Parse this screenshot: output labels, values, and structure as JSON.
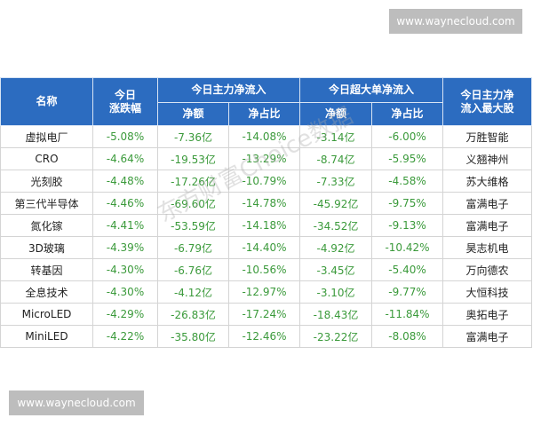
{
  "watermarks": {
    "top": "www.waynecloud.com",
    "bottom": "www.waynecloud.com",
    "diagonal": "东方财富Choice数据"
  },
  "table": {
    "header": {
      "name": "名称",
      "change": [
        "今日",
        "涨跌幅"
      ],
      "main": "今日主力净流入",
      "super": "今日超大单净流入",
      "top_stock": [
        "今日主力净",
        "流入最大股"
      ],
      "sub": [
        "净额",
        "净占比",
        "净额",
        "净占比"
      ]
    },
    "rows": [
      [
        "虚拟电厂",
        "-5.08%",
        "-7.36亿",
        "-14.08%",
        "-3.14亿",
        "-6.00%",
        "万胜智能"
      ],
      [
        "CRO",
        "-4.64%",
        "-19.53亿",
        "-13.29%",
        "-8.74亿",
        "-5.95%",
        "义翘神州"
      ],
      [
        "光刻胶",
        "-4.48%",
        "-17.26亿",
        "-10.79%",
        "-7.33亿",
        "-4.58%",
        "苏大维格"
      ],
      [
        "第三代半导体",
        "-4.46%",
        "-69.60亿",
        "-14.78%",
        "-45.92亿",
        "-9.75%",
        "富满电子"
      ],
      [
        "氮化镓",
        "-4.41%",
        "-53.59亿",
        "-14.18%",
        "-34.52亿",
        "-9.13%",
        "富满电子"
      ],
      [
        "3D玻璃",
        "-4.39%",
        "-6.79亿",
        "-14.40%",
        "-4.92亿",
        "-10.42%",
        "昊志机电"
      ],
      [
        "转基因",
        "-4.30%",
        "-6.76亿",
        "-10.56%",
        "-3.45亿",
        "-5.40%",
        "万向德农"
      ],
      [
        "全息技术",
        "-4.30%",
        "-4.12亿",
        "-12.97%",
        "-3.10亿",
        "-9.77%",
        "大恒科技"
      ],
      [
        "MicroLED",
        "-4.29%",
        "-26.83亿",
        "-17.24%",
        "-18.43亿",
        "-11.84%",
        "奥拓电子"
      ],
      [
        "MiniLED",
        "-4.22%",
        "-35.80亿",
        "-12.46%",
        "-23.22亿",
        "-8.08%",
        "富满电子"
      ]
    ]
  }
}
